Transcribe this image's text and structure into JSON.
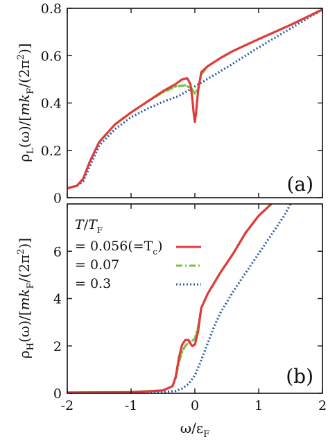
{
  "chart_data": [
    {
      "panel_label": "(a)",
      "type": "line",
      "ylabel": "ρL(ω)/[mkF/(2π²)]",
      "ylabel_parts": {
        "rho": "ρ",
        "rho_sub": "L",
        "mid": "(ω)/[",
        "mk": "mk",
        "k_sub": "F",
        "tail": "/(2π",
        "sup": "2",
        "end": ")]"
      },
      "xlim": [
        -2,
        2
      ],
      "ylim": [
        0,
        0.8
      ],
      "yticks": [
        "0",
        "0.2",
        "0.4",
        "0.6",
        "0.8"
      ],
      "series": [
        {
          "key": "t056",
          "color": "#e03a3a",
          "dash": "solid",
          "x": [
            -2.0,
            -1.85,
            -1.75,
            -1.65,
            -1.5,
            -1.25,
            -1.0,
            -0.75,
            -0.5,
            -0.3,
            -0.2,
            -0.12,
            -0.07,
            -0.04,
            -0.02,
            0.0,
            0.02,
            0.05,
            0.1,
            0.2,
            0.4,
            0.6,
            1.0,
            1.5,
            2.0
          ],
          "y": [
            0.04,
            0.05,
            0.08,
            0.15,
            0.235,
            0.31,
            0.36,
            0.405,
            0.45,
            0.48,
            0.5,
            0.505,
            0.48,
            0.42,
            0.36,
            0.32,
            0.36,
            0.45,
            0.53,
            0.555,
            0.59,
            0.62,
            0.67,
            0.73,
            0.795
          ]
        },
        {
          "key": "t07",
          "color": "#77c043",
          "dash": "dashdot",
          "x": [
            -2.0,
            -1.85,
            -1.75,
            -1.65,
            -1.5,
            -1.25,
            -1.0,
            -0.75,
            -0.5,
            -0.3,
            -0.15,
            -0.05,
            0.0,
            0.05,
            0.1,
            0.2,
            0.4,
            0.6,
            1.0,
            1.5,
            2.0
          ],
          "y": [
            0.04,
            0.05,
            0.08,
            0.15,
            0.235,
            0.31,
            0.36,
            0.405,
            0.445,
            0.47,
            0.475,
            0.46,
            0.44,
            0.46,
            0.52,
            0.555,
            0.59,
            0.62,
            0.67,
            0.73,
            0.795
          ]
        },
        {
          "key": "t3",
          "color": "#2a5ea8",
          "dash": "dotted",
          "x": [
            -2.0,
            -1.85,
            -1.75,
            -1.65,
            -1.5,
            -1.25,
            -1.0,
            -0.75,
            -0.5,
            -0.25,
            0.0,
            0.25,
            0.5,
            1.0,
            1.5,
            2.0
          ],
          "y": [
            0.04,
            0.05,
            0.07,
            0.13,
            0.22,
            0.29,
            0.34,
            0.375,
            0.405,
            0.43,
            0.47,
            0.51,
            0.55,
            0.635,
            0.715,
            0.795
          ]
        }
      ]
    },
    {
      "panel_label": "(b)",
      "type": "line",
      "ylabel": "ρH(ω)/[mkF/(2π²)]",
      "ylabel_parts": {
        "rho": "ρ",
        "rho_sub": "H",
        "mid": "(ω)/[",
        "mk": "mk",
        "k_sub": "F",
        "tail": "/(2π",
        "sup": "2",
        "end": ")]"
      },
      "xlabel": "ω/εF",
      "xlabel_parts": {
        "omega": "ω/ε",
        "sub": "F"
      },
      "xlim": [
        -2,
        2
      ],
      "ylim": [
        0,
        8
      ],
      "xticks": [
        "-2",
        "-1",
        "0",
        "1",
        "2"
      ],
      "yticks": [
        "0",
        "2",
        "4",
        "6"
      ],
      "legend": {
        "placement": "top-left",
        "title_T": "T",
        "title_slash": "/",
        "title_TF": "T",
        "title_sub": "F",
        "entries": [
          {
            "key": "t056",
            "label": "= 0.056(=T",
            "label_sub": "c",
            "label_end": ")"
          },
          {
            "key": "t07",
            "label": "= 0.07"
          },
          {
            "key": "t3",
            "label": "= 0.3"
          }
        ]
      },
      "series": [
        {
          "key": "t056",
          "color": "#e03a3a",
          "dash": "solid",
          "x": [
            -2.0,
            -1.0,
            -0.5,
            -0.35,
            -0.3,
            -0.25,
            -0.2,
            -0.15,
            -0.1,
            -0.07,
            -0.04,
            0.0,
            0.05,
            0.1,
            0.2,
            0.4,
            0.6,
            0.8,
            1.0,
            1.2
          ],
          "y": [
            0.03,
            0.05,
            0.12,
            0.3,
            0.7,
            1.5,
            2.05,
            2.25,
            2.25,
            2.1,
            2.0,
            2.05,
            2.6,
            3.6,
            4.2,
            5.1,
            5.9,
            6.8,
            7.5,
            8.0
          ]
        },
        {
          "key": "t07",
          "color": "#77c043",
          "dash": "dashdot",
          "x": [
            -2.0,
            -1.0,
            -0.5,
            -0.35,
            -0.3,
            -0.25,
            -0.2,
            -0.15,
            -0.1,
            -0.05,
            0.0,
            0.05,
            0.1,
            0.2,
            0.4,
            0.6,
            0.8,
            1.0,
            1.2
          ],
          "y": [
            0.03,
            0.05,
            0.12,
            0.3,
            0.65,
            1.3,
            1.75,
            2.0,
            2.15,
            2.2,
            2.3,
            2.8,
            3.6,
            4.2,
            5.1,
            5.9,
            6.8,
            7.5,
            8.0
          ]
        },
        {
          "key": "t3",
          "color": "#2a5ea8",
          "dash": "dotted",
          "x": [
            -2.0,
            -1.0,
            -0.5,
            -0.3,
            -0.2,
            -0.1,
            0.0,
            0.1,
            0.2,
            0.3,
            0.4,
            0.6,
            0.8,
            1.0,
            1.2,
            1.4,
            1.5
          ],
          "y": [
            0.03,
            0.04,
            0.06,
            0.1,
            0.2,
            0.4,
            0.75,
            1.4,
            2.1,
            2.8,
            3.4,
            4.3,
            5.1,
            5.9,
            6.7,
            7.5,
            8.0
          ]
        }
      ]
    }
  ]
}
